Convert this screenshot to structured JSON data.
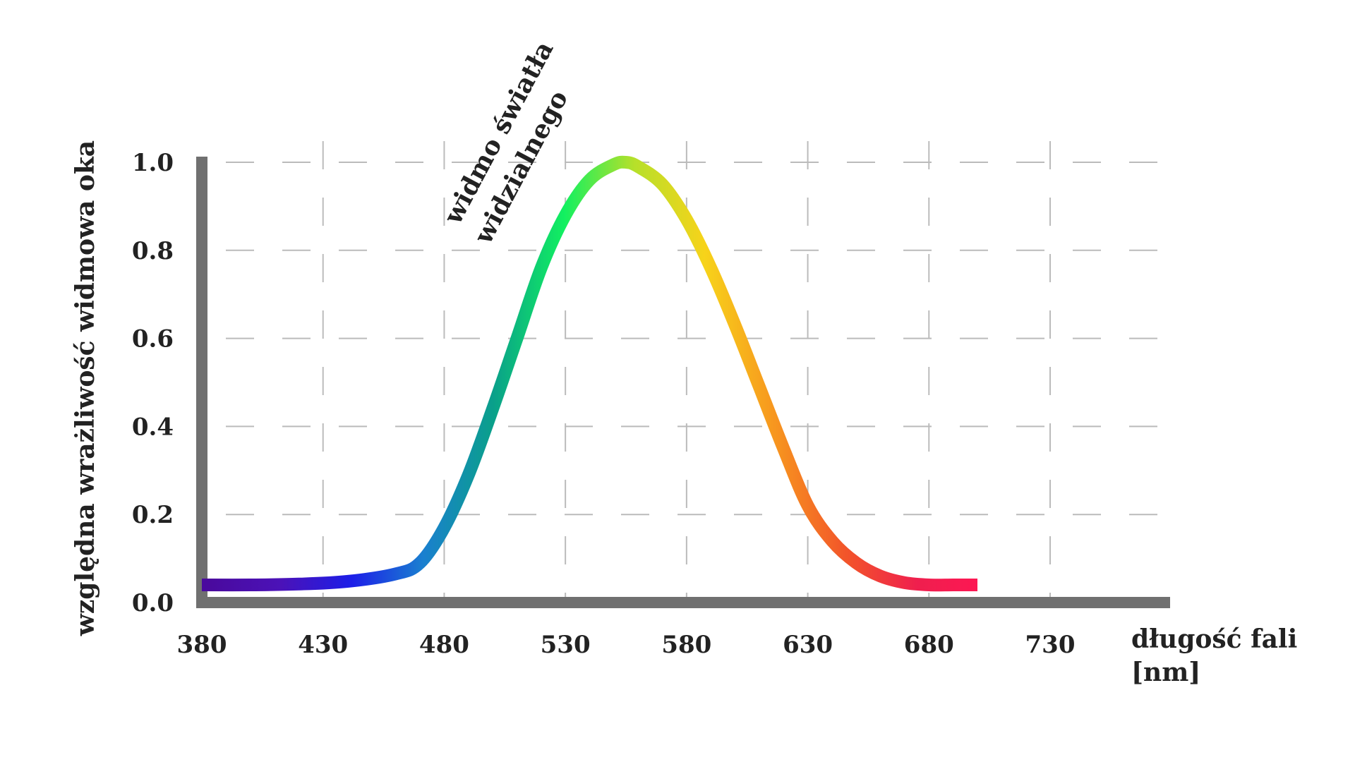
{
  "chart_data": {
    "type": "line",
    "title": "",
    "xlabel": "długość fali",
    "xlabel_unit": "[nm]",
    "ylabel": "względna wrażliwość widmowa oka",
    "xlim": [
      380,
      730
    ],
    "ylim": [
      0,
      1.0
    ],
    "x_ticks": [
      "380",
      "430",
      "480",
      "530",
      "580",
      "630",
      "680",
      "730"
    ],
    "y_ticks": [
      "0.0",
      "0.2",
      "0.4",
      "0.6",
      "0.8",
      "1.0"
    ],
    "grid": true,
    "annotation": {
      "line1": "widmo światła",
      "line2": "widzialnego"
    },
    "series": [
      {
        "x": [
          380,
          400,
          420,
          440,
          460,
          470,
          480,
          490,
          500,
          510,
          520,
          530,
          540,
          550,
          555,
          560,
          570,
          580,
          590,
          600,
          610,
          620,
          630,
          640,
          650,
          660,
          670,
          680,
          690,
          700
        ],
        "y": [
          0.04,
          0.04,
          0.042,
          0.048,
          0.065,
          0.09,
          0.17,
          0.29,
          0.44,
          0.6,
          0.76,
          0.88,
          0.96,
          0.995,
          1.0,
          0.99,
          0.95,
          0.87,
          0.76,
          0.63,
          0.49,
          0.35,
          0.22,
          0.14,
          0.09,
          0.06,
          0.045,
          0.04,
          0.04,
          0.04
        ]
      }
    ],
    "colors": {
      "axis": "#707070",
      "grid": "#bbbbbb",
      "spectrum": [
        "#4a0a9e",
        "#4b12b8",
        "#1c1ee8",
        "#1a7fd0",
        "#0aa08a",
        "#12f060",
        "#b6e02a",
        "#f7d31a",
        "#f7951f",
        "#f2542a",
        "#ef1f4e",
        "#ff1654"
      ]
    }
  }
}
